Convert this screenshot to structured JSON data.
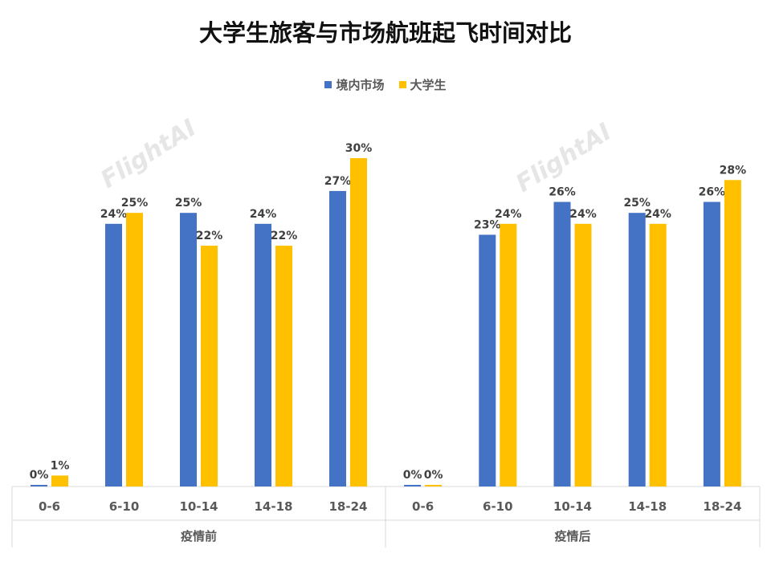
{
  "chart_data": {
    "type": "bar",
    "title": "大学生旅客与市场航班起飞时间对比",
    "watermark": "FlightAI",
    "groups": [
      {
        "label": "疫情前",
        "categories": [
          "0-6",
          "6-10",
          "10-14",
          "14-18",
          "18-24"
        ],
        "series": [
          {
            "name": "境内市场",
            "color": "#4472C4",
            "values": [
              0,
              24,
              25,
              24,
              27
            ],
            "labels": [
              "0%",
              "24%",
              "25%",
              "24%",
              "27%"
            ]
          },
          {
            "name": "大学生",
            "color": "#FFC000",
            "values": [
              1,
              25,
              22,
              22,
              30
            ],
            "labels": [
              "1%",
              "25%",
              "22%",
              "22%",
              "30%"
            ]
          }
        ]
      },
      {
        "label": "疫情后",
        "categories": [
          "0-6",
          "6-10",
          "10-14",
          "14-18",
          "18-24"
        ],
        "series": [
          {
            "name": "境内市场",
            "color": "#4472C4",
            "values": [
              0,
              23,
              26,
              25,
              26
            ],
            "labels": [
              "0%",
              "23%",
              "26%",
              "25%",
              "26%"
            ]
          },
          {
            "name": "大学生",
            "color": "#FFC000",
            "values": [
              0,
              24,
              24,
              24,
              28
            ],
            "labels": [
              "0%",
              "24%",
              "24%",
              "24%",
              "28%"
            ]
          }
        ]
      }
    ],
    "legend": [
      "境内市场",
      "大学生"
    ],
    "legend_position": "top",
    "ylim": [
      0,
      30
    ],
    "grid": false
  }
}
